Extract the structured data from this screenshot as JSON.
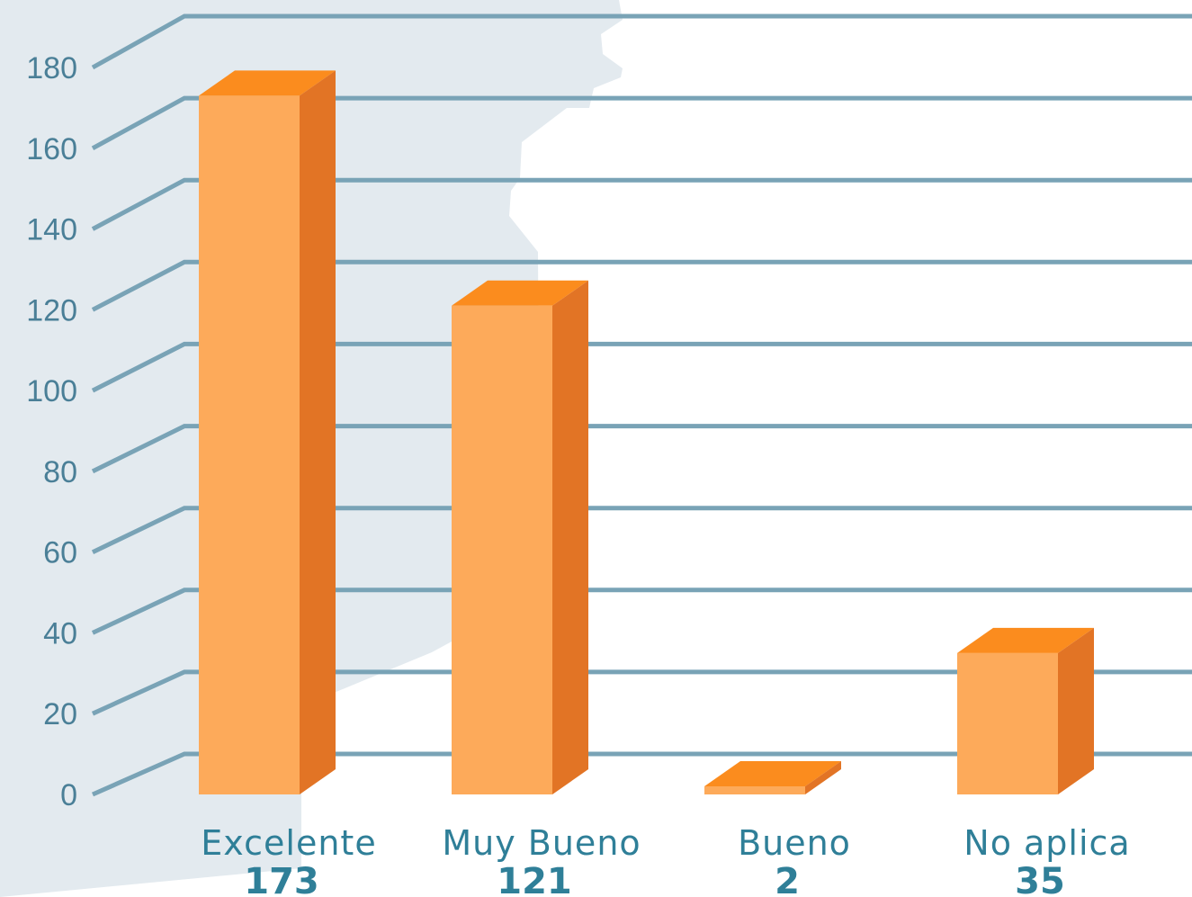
{
  "chart_data": {
    "type": "bar",
    "categories": [
      "Excelente",
      "Muy Bueno",
      "Bueno",
      "No aplica"
    ],
    "values": [
      173,
      121,
      2,
      35
    ],
    "value_labels": [
      "173",
      "121",
      "2",
      "35"
    ],
    "yticks": [
      "0",
      "20",
      "40",
      "60",
      "80",
      "100",
      "120",
      "140",
      "160",
      "180"
    ],
    "ylim": [
      0,
      180
    ],
    "grid": true,
    "colors": {
      "bar_front": "#fdaa5a",
      "bar_top": "#fb8c1e",
      "bar_side": "#e27425",
      "grid": "#79a3b6",
      "text": "#2f7f98",
      "background_shape": "#e3eaef"
    }
  }
}
